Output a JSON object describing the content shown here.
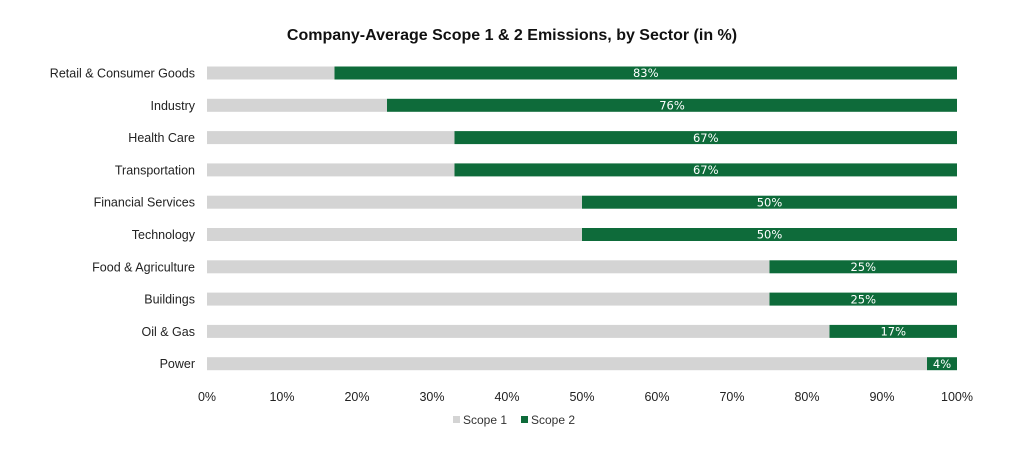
{
  "colors": {
    "scope1": "#d4d4d4",
    "scope2": "#0e6b3a",
    "background": "#ffffff"
  },
  "chart_data": {
    "type": "bar",
    "orientation": "horizontal",
    "stacked": true,
    "title": "Company-Average Scope 1 & 2 Emissions, by Sector (in %)",
    "xlabel": "",
    "ylabel": "",
    "xlim": [
      0,
      100
    ],
    "x_ticks": [
      "0%",
      "10%",
      "20%",
      "30%",
      "40%",
      "50%",
      "60%",
      "70%",
      "80%",
      "90%",
      "100%"
    ],
    "grid": false,
    "legend_position": "bottom",
    "categories": [
      "Retail & Consumer Goods",
      "Industry",
      "Health Care",
      "Transportation",
      "Financial Services",
      "Technology",
      "Food & Agriculture",
      "Buildings",
      "Oil & Gas",
      "Power"
    ],
    "series": [
      {
        "name": "Scope 1",
        "values": [
          17,
          24,
          33,
          33,
          50,
          50,
          75,
          75,
          83,
          96
        ]
      },
      {
        "name": "Scope 2",
        "values": [
          83,
          76,
          67,
          67,
          50,
          50,
          25,
          25,
          17,
          4
        ]
      }
    ],
    "data_labels": [
      "83%",
      "76%",
      "67%",
      "67%",
      "50%",
      "50%",
      "25%",
      "25%",
      "17%",
      "4%"
    ]
  }
}
